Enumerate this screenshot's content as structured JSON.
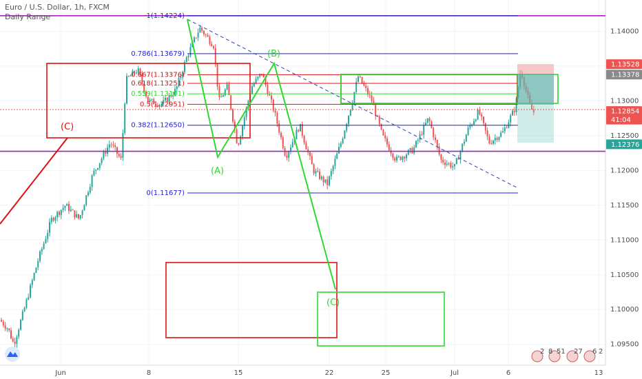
{
  "header": {
    "symbol": "Euro / U.S. Dollar, 1h, FXCM",
    "indicator": "Daily Range"
  },
  "colors": {
    "up": "#26a69a",
    "down": "#ef5350",
    "purple": "#9c27b0",
    "blue": "#1d1ddb",
    "green": "#2fd82f",
    "red": "#e01010",
    "olive": "#7a6a1a"
  },
  "chart_data": {
    "type": "candlestick",
    "ylim": [
      1.092,
      1.1445
    ],
    "price_ticks": [
      "1.14000",
      "1.13500",
      "1.13000",
      "1.12500",
      "1.12000",
      "1.11500",
      "1.11000",
      "1.10500",
      "1.10000",
      "1.09500"
    ],
    "price_tick_values": [
      1.14,
      1.135,
      1.13,
      1.125,
      1.12,
      1.115,
      1.11,
      1.105,
      1.1,
      1.095
    ],
    "time_ticks": [
      "Jun",
      "8",
      "15",
      "22",
      "25",
      "Jul",
      "6",
      "13"
    ],
    "price_tags": [
      {
        "text": "1.13528",
        "value": 1.13528,
        "color": "#ef5350"
      },
      {
        "text": "1.13378",
        "value": 1.13378,
        "color": "#8a8a8a"
      },
      {
        "text": "1.12854",
        "value": 1.12854,
        "color": "#ef5350"
      },
      {
        "text": "41:04",
        "value": 1.1273,
        "color": "#ef5350"
      },
      {
        "text": "1.12376",
        "value": 1.12376,
        "color": "#26a69a"
      }
    ],
    "fib_levels": [
      {
        "label": "1(1.14224)",
        "value": 1.14224,
        "color": "#1d1ddb"
      },
      {
        "label": "0.786(1.13679)",
        "value": 1.13679,
        "color": "#1d1ddb"
      },
      {
        "label": "0.667(1.13376)",
        "value": 1.13376,
        "color": "#e01010"
      },
      {
        "label": "0.618(1.13251)",
        "value": 1.13251,
        "color": "#e01010"
      },
      {
        "label": "0.559(1.13101)",
        "value": 1.13101,
        "color": "#2fd82f"
      },
      {
        "label": "0.5(1.12951)",
        "value": 1.12951,
        "color": "#e01010"
      },
      {
        "label": "0.382(1.12650)",
        "value": 1.1265,
        "color": "#1d1ddb"
      },
      {
        "label": "0(1.11677)",
        "value": 1.11677,
        "color": "#1d1ddb"
      }
    ],
    "horizontal_lines": [
      {
        "value": 1.14224,
        "color": "#9c27b0"
      },
      {
        "value": 1.12275,
        "color": "#9c27b0"
      }
    ],
    "wave_labels": [
      "(A)",
      "(B)",
      "(C)",
      "(C)"
    ],
    "bottom_events": [
      "2",
      "8",
      "51",
      "27",
      "6",
      "2"
    ]
  }
}
